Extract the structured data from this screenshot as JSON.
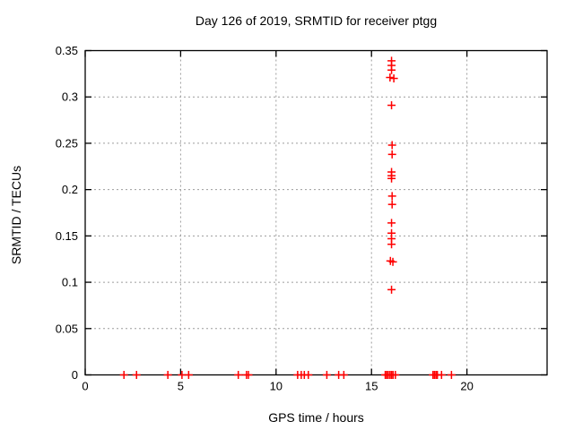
{
  "chart_data": {
    "type": "scatter",
    "title": "Day 126 of 2019, SRMTID for receiver ptgg",
    "xlabel": "GPS time / hours",
    "ylabel": "SRMTID / TECUs",
    "xlim": [
      0,
      24.2
    ],
    "ylim": [
      0,
      0.35
    ],
    "x_ticks": {
      "values": [
        0,
        5,
        10,
        15,
        20
      ],
      "labels": [
        "0",
        "5",
        "10",
        "15",
        "20"
      ]
    },
    "y_ticks": {
      "values": [
        0,
        0.05,
        0.1,
        0.15,
        0.2,
        0.25,
        0.3,
        0.35
      ],
      "labels": [
        "0",
        "0.05",
        "0.1",
        "0.15",
        "0.2",
        "0.25",
        "0.3",
        "0.35"
      ]
    },
    "grid": true,
    "legend": "none",
    "marker": "plus",
    "marker_color": "#ff0000",
    "grid_color": "#9c9c9c",
    "border_color": "#000000",
    "series": [
      {
        "name": "SRMTID",
        "points": [
          [
            16.05,
            0.339
          ],
          [
            16.05,
            0.334
          ],
          [
            16.05,
            0.329
          ],
          [
            15.97,
            0.321
          ],
          [
            16.17,
            0.32
          ],
          [
            16.05,
            0.291
          ],
          [
            16.08,
            0.248
          ],
          [
            16.08,
            0.238
          ],
          [
            16.05,
            0.219
          ],
          [
            16.05,
            0.215
          ],
          [
            16.05,
            0.212
          ],
          [
            16.08,
            0.193
          ],
          [
            16.08,
            0.184
          ],
          [
            16.05,
            0.164
          ],
          [
            16.05,
            0.153
          ],
          [
            16.05,
            0.147
          ],
          [
            16.05,
            0.141
          ],
          [
            15.99,
            0.123
          ],
          [
            16.12,
            0.122
          ],
          [
            16.05,
            0.092
          ],
          [
            2.03,
            0
          ],
          [
            2.69,
            0
          ],
          [
            4.33,
            0
          ],
          [
            5.07,
            0
          ],
          [
            5.42,
            0
          ],
          [
            8.02,
            0
          ],
          [
            8.45,
            0
          ],
          [
            8.55,
            0
          ],
          [
            11.13,
            0
          ],
          [
            11.32,
            0
          ],
          [
            11.48,
            0
          ],
          [
            11.69,
            0
          ],
          [
            12.66,
            0
          ],
          [
            13.28,
            0
          ],
          [
            13.55,
            0
          ],
          [
            15.72,
            0
          ],
          [
            15.8,
            0
          ],
          [
            15.88,
            0
          ],
          [
            15.97,
            0
          ],
          [
            16.05,
            0
          ],
          [
            16.13,
            0
          ],
          [
            16.25,
            0
          ],
          [
            18.22,
            0
          ],
          [
            18.3,
            0
          ],
          [
            18.38,
            0
          ],
          [
            18.45,
            0
          ],
          [
            18.67,
            0
          ],
          [
            19.19,
            0
          ]
        ]
      }
    ]
  }
}
